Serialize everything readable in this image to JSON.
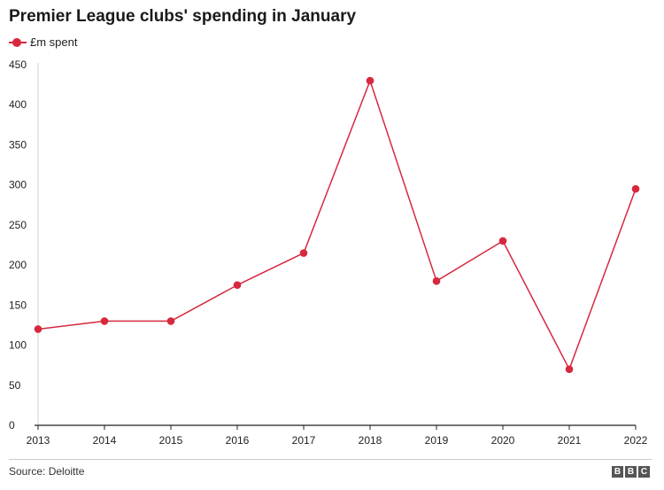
{
  "chart_data": {
    "type": "line",
    "title": "Premier League clubs' spending in January",
    "categories": [
      "2013",
      "2014",
      "2015",
      "2016",
      "2017",
      "2018",
      "2019",
      "2020",
      "2021",
      "2022"
    ],
    "series": [
      {
        "name": "£m spent",
        "values": [
          120,
          130,
          130,
          175,
          215,
          430,
          180,
          230,
          70,
          295
        ],
        "color": "#d6293e"
      }
    ],
    "ylim": [
      0,
      450
    ],
    "yticks": [
      0,
      50,
      100,
      150,
      200,
      250,
      300,
      350,
      400,
      450
    ],
    "xlabel": "",
    "ylabel": "",
    "grid": false,
    "legend": "top-left"
  },
  "footer": {
    "source": "Source: Deloitte",
    "logo": [
      "B",
      "B",
      "C"
    ]
  }
}
